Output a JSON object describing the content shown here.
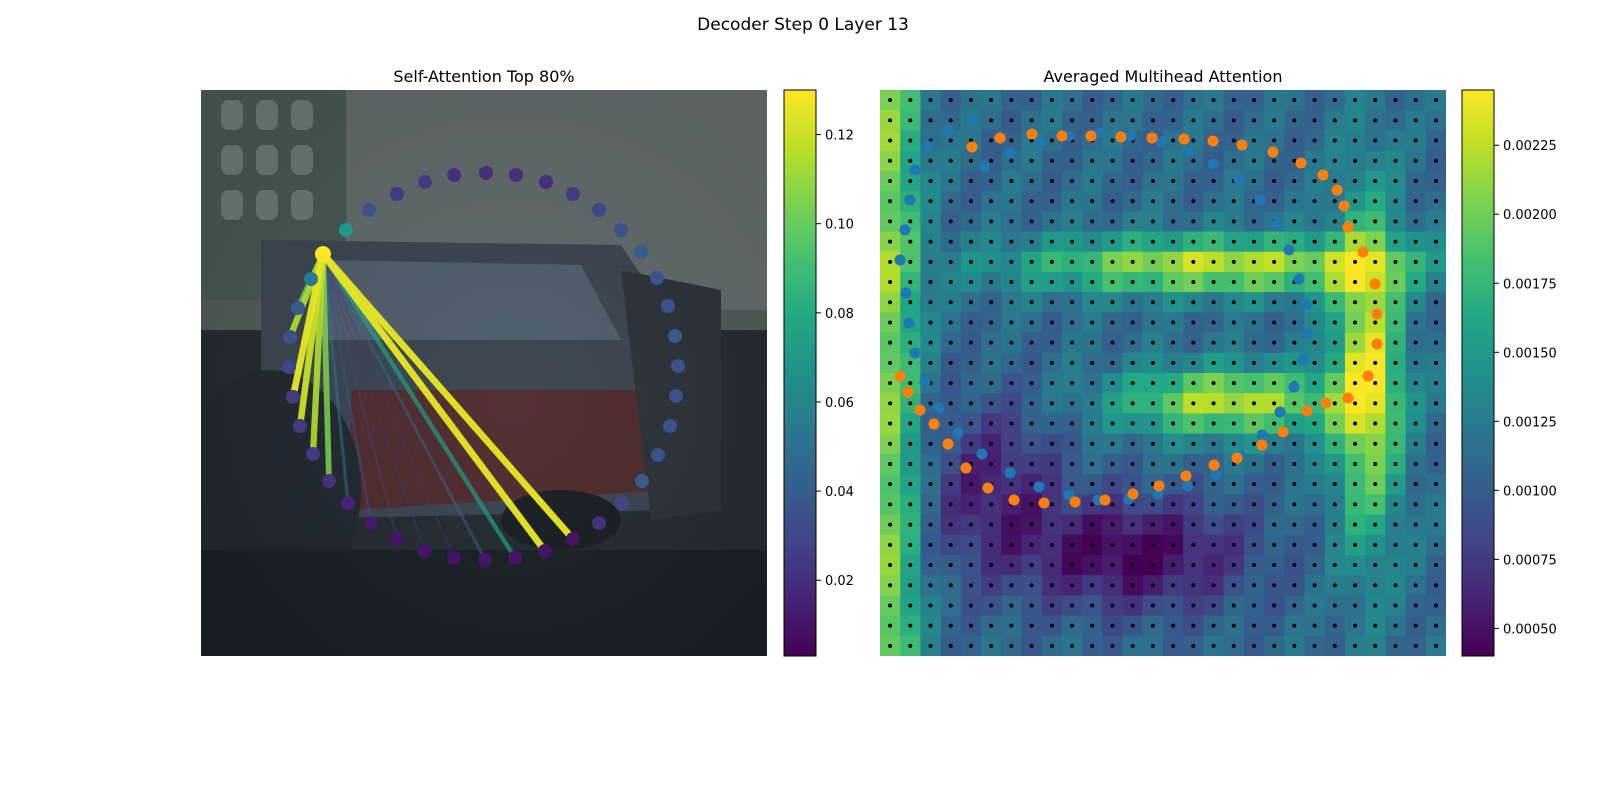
{
  "figure": {
    "suptitle": "Decoder Step 0 Layer 13"
  },
  "colormap_stops": [
    "#440154",
    "#482475",
    "#414487",
    "#355f8d",
    "#2a788e",
    "#21918c",
    "#22a884",
    "#44bf70",
    "#7ad151",
    "#bddf26",
    "#fde725"
  ],
  "chart_data": [
    {
      "type": "image-overlay",
      "title": "Self-Attention Top 80%",
      "colorbar": {
        "min": 0.003,
        "max": 0.13,
        "ticks": [
          0.02,
          0.04,
          0.06,
          0.08,
          0.1,
          0.12
        ],
        "tick_labels": [
          "0.02",
          "0.04",
          "0.06",
          "0.08",
          "0.10",
          "0.12"
        ]
      },
      "query_point": {
        "x": 122,
        "y": 164,
        "value": 0.13
      },
      "points": [
        {
          "x": 285,
          "y": 83,
          "value": 0.02
        },
        {
          "x": 315,
          "y": 85,
          "value": 0.02
        },
        {
          "x": 345,
          "y": 92,
          "value": 0.02
        },
        {
          "x": 372,
          "y": 104,
          "value": 0.025
        },
        {
          "x": 398,
          "y": 120,
          "value": 0.03
        },
        {
          "x": 420,
          "y": 140,
          "value": 0.035
        },
        {
          "x": 440,
          "y": 162,
          "value": 0.04
        },
        {
          "x": 456,
          "y": 188,
          "value": 0.035
        },
        {
          "x": 467,
          "y": 216,
          "value": 0.035
        },
        {
          "x": 474,
          "y": 246,
          "value": 0.04
        },
        {
          "x": 477,
          "y": 276,
          "value": 0.035
        },
        {
          "x": 475,
          "y": 306,
          "value": 0.035
        },
        {
          "x": 469,
          "y": 336,
          "value": 0.035
        },
        {
          "x": 457,
          "y": 365,
          "value": 0.035
        },
        {
          "x": 441,
          "y": 391,
          "value": 0.04
        },
        {
          "x": 421,
          "y": 413,
          "value": 0.03
        },
        {
          "x": 398,
          "y": 433,
          "value": 0.02
        },
        {
          "x": 372,
          "y": 449,
          "value": 0.01
        },
        {
          "x": 344,
          "y": 461,
          "value": 0.01
        },
        {
          "x": 314,
          "y": 468,
          "value": 0.01
        },
        {
          "x": 284,
          "y": 470,
          "value": 0.01
        },
        {
          "x": 253,
          "y": 468,
          "value": 0.01
        },
        {
          "x": 224,
          "y": 461,
          "value": 0.01
        },
        {
          "x": 196,
          "y": 449,
          "value": 0.01
        },
        {
          "x": 170,
          "y": 433,
          "value": 0.012
        },
        {
          "x": 147,
          "y": 413,
          "value": 0.015
        },
        {
          "x": 128,
          "y": 391,
          "value": 0.02
        },
        {
          "x": 112,
          "y": 364,
          "value": 0.025
        },
        {
          "x": 99,
          "y": 336,
          "value": 0.025
        },
        {
          "x": 92,
          "y": 307,
          "value": 0.025
        },
        {
          "x": 88,
          "y": 277,
          "value": 0.03
        },
        {
          "x": 89,
          "y": 247,
          "value": 0.035
        },
        {
          "x": 97,
          "y": 218,
          "value": 0.04
        },
        {
          "x": 110,
          "y": 189,
          "value": 0.055
        },
        {
          "x": 145,
          "y": 140,
          "value": 0.07
        },
        {
          "x": 168,
          "y": 120,
          "value": 0.035
        },
        {
          "x": 196,
          "y": 104,
          "value": 0.025
        },
        {
          "x": 224,
          "y": 92,
          "value": 0.025
        },
        {
          "x": 253,
          "y": 85,
          "value": 0.02
        }
      ],
      "attention_lines": [
        {
          "to": [
            372,
            449
          ],
          "value": 0.125
        },
        {
          "to": [
            344,
            461
          ],
          "value": 0.125
        },
        {
          "to": [
            314,
            468
          ],
          "value": 0.075
        },
        {
          "to": [
            284,
            470
          ],
          "value": 0.045
        },
        {
          "to": [
            128,
            391
          ],
          "value": 0.105
        },
        {
          "to": [
            112,
            364
          ],
          "value": 0.115
        },
        {
          "to": [
            99,
            336
          ],
          "value": 0.12
        },
        {
          "to": [
            92,
            307
          ],
          "value": 0.125
        },
        {
          "to": [
            89,
            247
          ],
          "value": 0.115
        },
        {
          "to": [
            97,
            218
          ],
          "value": 0.1
        },
        {
          "to": [
            110,
            189
          ],
          "value": 0.09
        },
        {
          "to": [
            147,
            413
          ],
          "value": 0.05
        },
        {
          "to": [
            170,
            433
          ],
          "value": 0.035
        },
        {
          "to": [
            196,
            449
          ],
          "value": 0.03
        },
        {
          "to": [
            224,
            461
          ],
          "value": 0.025
        },
        {
          "to": [
            253,
            468
          ],
          "value": 0.025
        }
      ]
    },
    {
      "type": "heatmap",
      "title": "Averaged Multihead Attention",
      "colorbar": {
        "min": 0.0004,
        "max": 0.00245,
        "ticks": [
          0.0005,
          0.00075,
          0.001,
          0.00125,
          0.0015,
          0.00175,
          0.002,
          0.00225
        ],
        "tick_labels": [
          "0.00050",
          "0.00075",
          "0.00100",
          "0.00125",
          "0.00150",
          "0.00175",
          "0.00200",
          "0.00225"
        ]
      },
      "grid_size": 28,
      "blue_points": [
        [
          93,
          30
        ],
        [
          68,
          40
        ],
        [
          48,
          56
        ],
        [
          35,
          80
        ],
        [
          30,
          110
        ],
        [
          25,
          140
        ],
        [
          20,
          170
        ],
        [
          26,
          203
        ],
        [
          29,
          233
        ],
        [
          35,
          263
        ],
        [
          45,
          292
        ],
        [
          59,
          318
        ],
        [
          78,
          343
        ],
        [
          102,
          364
        ],
        [
          130,
          383
        ],
        [
          159,
          397
        ],
        [
          189,
          405
        ],
        [
          218,
          410
        ],
        [
          249,
          409
        ],
        [
          278,
          404
        ],
        [
          308,
          396
        ],
        [
          336,
          385
        ],
        [
          360,
          366
        ],
        [
          382,
          345
        ],
        [
          400,
          322
        ],
        [
          414,
          297
        ],
        [
          423,
          270
        ],
        [
          427,
          244
        ],
        [
          426,
          215
        ],
        [
          419,
          189
        ],
        [
          409,
          160
        ],
        [
          397,
          134
        ],
        [
          380,
          110
        ],
        [
          359,
          90
        ],
        [
          333,
          74
        ],
        [
          309,
          62
        ],
        [
          281,
          52
        ],
        [
          250,
          46
        ],
        [
          219,
          43
        ],
        [
          189,
          46
        ],
        [
          160,
          52
        ],
        [
          130,
          63
        ],
        [
          105,
          76
        ]
      ],
      "orange_points": [
        [
          92,
          57
        ],
        [
          120,
          48
        ],
        [
          152,
          44
        ],
        [
          182,
          46
        ],
        [
          211,
          46
        ],
        [
          241,
          47
        ],
        [
          272,
          48
        ],
        [
          304,
          49
        ],
        [
          333,
          51
        ],
        [
          362,
          55
        ],
        [
          393,
          62
        ],
        [
          421,
          73
        ],
        [
          443,
          85
        ],
        [
          457,
          100
        ],
        [
          464,
          116
        ],
        [
          468,
          137
        ],
        [
          483,
          162
        ],
        [
          495,
          194
        ],
        [
          497,
          224
        ],
        [
          497,
          254
        ],
        [
          488,
          286
        ],
        [
          468,
          308
        ],
        [
          446,
          313
        ],
        [
          427,
          321
        ],
        [
          403,
          342
        ],
        [
          382,
          355
        ],
        [
          357,
          368
        ],
        [
          334,
          375
        ],
        [
          306,
          386
        ],
        [
          279,
          396
        ],
        [
          253,
          404
        ],
        [
          225,
          410
        ],
        [
          195,
          412
        ],
        [
          164,
          413
        ],
        [
          134,
          410
        ],
        [
          108,
          398
        ],
        [
          86,
          378
        ],
        [
          68,
          354
        ],
        [
          54,
          334
        ],
        [
          40,
          320
        ],
        [
          28,
          302
        ],
        [
          20,
          286
        ]
      ]
    }
  ]
}
